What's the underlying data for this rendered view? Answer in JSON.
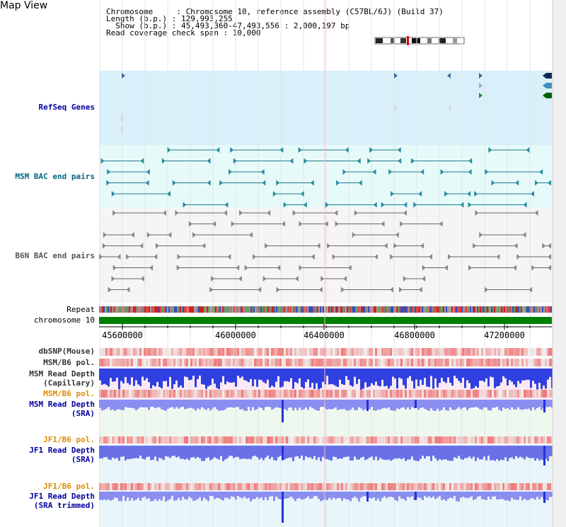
{
  "title": "Map View",
  "info": {
    "line1": "Chromosome     : Chromosome 10, reference assembly (C57BL/6J) (Build 37)",
    "line2": "Length (b.p.) : 129,993,255",
    "line3": "  Show (b.p.) : 45,493,360-47,493,556 : 2,000,197 bp",
    "line4": "Read coverage check span : 10,000"
  },
  "tracks": {
    "refseq": "RefSeq Genes",
    "msm_bac": "MSM BAC end pairs",
    "b6n_bac": "B6N BAC end pairs",
    "repeat": "Repeat",
    "chromosome": "chromosome 10",
    "dbsnp": "dbSNP(Mouse)",
    "msm_b6_pol_1": "MSM/B6 pol.",
    "msm_read_depth_cap_1": "MSM Read Depth",
    "msm_read_depth_cap_2": "(Capillary)",
    "msm_b6_pol_2": "MSM/B6 pol.",
    "msm_read_depth_sra_1": "MSM Read Depth",
    "msm_read_depth_sra_2": "(SRA)",
    "jf1_b6_pol_1": "JF1/B6 pol.",
    "jf1_read_depth_1": "JF1 Read Depth",
    "jf1_read_depth_2": "(SRA)",
    "jf1_b6_pol_2": "JF1/B6 pol.",
    "jf1_read_depth_trim_1": "JF1 Read Depth",
    "jf1_read_depth_trim_2": "(SRA trimmed)"
  },
  "axis": {
    "ticks": [
      "45600000",
      "46000000",
      "46400000",
      "46800000",
      "47200000"
    ]
  },
  "colors": {
    "refseq_bg": "#d9f0fa",
    "msm_bac_bg": "#e6fafa",
    "b6n_bac_bg": "#f5f5f8",
    "chromosome_green": "#008000",
    "depth_blue": "#2233dd",
    "depth_light_blue": "#8a8ef0",
    "pol_red": "#e83030",
    "grid": "#dddddd"
  }
}
